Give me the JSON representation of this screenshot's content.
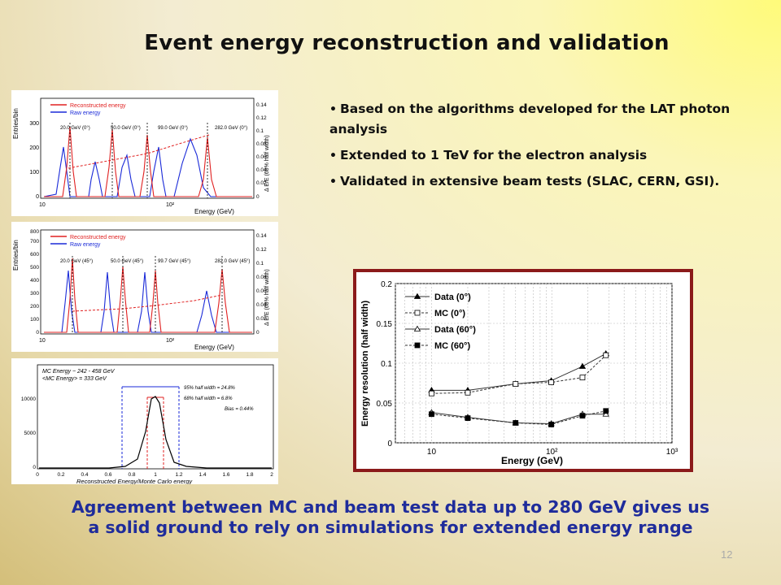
{
  "slide": {
    "title": "Event energy reconstruction and validation",
    "bullets": [
      "Based on the algorithms developed for the LAT photon analysis",
      "Extended to 1 TeV for the electron analysis",
      "Validated in extensive beam tests (SLAC, CERN, GSI)."
    ],
    "conclusion_line1": "Agreement between MC and beam test data up to 280 GeV gives us",
    "conclusion_line2": "a solid ground to rely on simulations for extended energy range",
    "page_number": "12",
    "frame_color": "#8b1a1a",
    "conclusion_color": "#1f2c9b"
  },
  "panel1": {
    "legend": [
      "Reconstructed energy",
      "Raw energy"
    ],
    "ylabel": "Entries/bin",
    "y2label": "Δ E/E (68% half width)",
    "xlabel": "Energy (GeV)",
    "yticks": [
      "0",
      "100",
      "200",
      "300"
    ],
    "y2ticks": [
      "0",
      "0.02",
      "0.04",
      "0.06",
      "0.08",
      "0.1",
      "0.12",
      "0.14"
    ],
    "xticks": [
      "10",
      "10²"
    ],
    "peak_labels": [
      "20.0 GeV (0°)",
      "50.0 GeV (0°)",
      "99.0 GeV (0°)",
      "282.0 GeV (0°)"
    ]
  },
  "panel2": {
    "legend": [
      "Reconstructed energy",
      "Raw energy"
    ],
    "ylabel": "Entries/bin",
    "y2label": "Δ E/E (68% half width)",
    "xlabel": "Energy (GeV)",
    "yticks": [
      "0",
      "100",
      "200",
      "300",
      "400",
      "500",
      "600",
      "700",
      "800"
    ],
    "y2ticks": [
      "0",
      "0.02",
      "0.04",
      "0.06",
      "0.08",
      "0.1",
      "0.12",
      "0.14"
    ],
    "xticks": [
      "10",
      "10²"
    ],
    "peak_labels": [
      "20.0 GeV (45°)",
      "50.0 GeV (45°)",
      "99.7 GeV (45°)",
      "282.0 GeV (45°)"
    ]
  },
  "panel3": {
    "info_line1": "MC Energy ~ 242 - 458 GeV",
    "info_line2": "<MC Energy> = 333 GeV",
    "label_95": "95% half width = 24.8%",
    "label_68": "68% half width = 6.8%",
    "bias": "Bias = 0.44%",
    "xlabel": "Reconstructed Energy/Monte Carlo energy",
    "yticks": [
      "0",
      "5000",
      "10000"
    ],
    "xticks": [
      "0",
      "0.2",
      "0.4",
      "0.6",
      "0.8",
      "1",
      "1.2",
      "1.4",
      "1.6",
      "1.8",
      "2"
    ]
  },
  "chart_data": {
    "type": "line",
    "xlabel": "Energy (GeV)",
    "ylabel": "Energy resolution (half width)",
    "xscale": "log",
    "xlim": [
      5,
      1000
    ],
    "ylim": [
      0,
      0.2
    ],
    "xticks": [
      "10",
      "10²",
      "10³"
    ],
    "yticks": [
      "0",
      "0.05",
      "0.1",
      "0.15",
      "0.2"
    ],
    "legend_position": "top-left",
    "grid": true,
    "series": [
      {
        "name": "Data (0°)",
        "x": [
          10,
          20,
          50,
          99,
          180,
          282
        ],
        "y": [
          0.066,
          0.066,
          0.074,
          0.078,
          0.096,
          0.112
        ]
      },
      {
        "name": "MC (0°)",
        "x": [
          10,
          20,
          50,
          99,
          180,
          282
        ],
        "y": [
          0.062,
          0.063,
          0.074,
          0.076,
          0.082,
          0.11
        ]
      },
      {
        "name": "Data (60°)",
        "x": [
          10,
          20,
          50,
          99,
          180,
          282
        ],
        "y": [
          0.038,
          0.032,
          0.025,
          0.024,
          0.036,
          0.036
        ]
      },
      {
        "name": "MC (60°)",
        "x": [
          10,
          20,
          50,
          99,
          180,
          282
        ],
        "y": [
          0.036,
          0.031,
          0.025,
          0.023,
          0.034,
          0.04
        ]
      }
    ]
  }
}
